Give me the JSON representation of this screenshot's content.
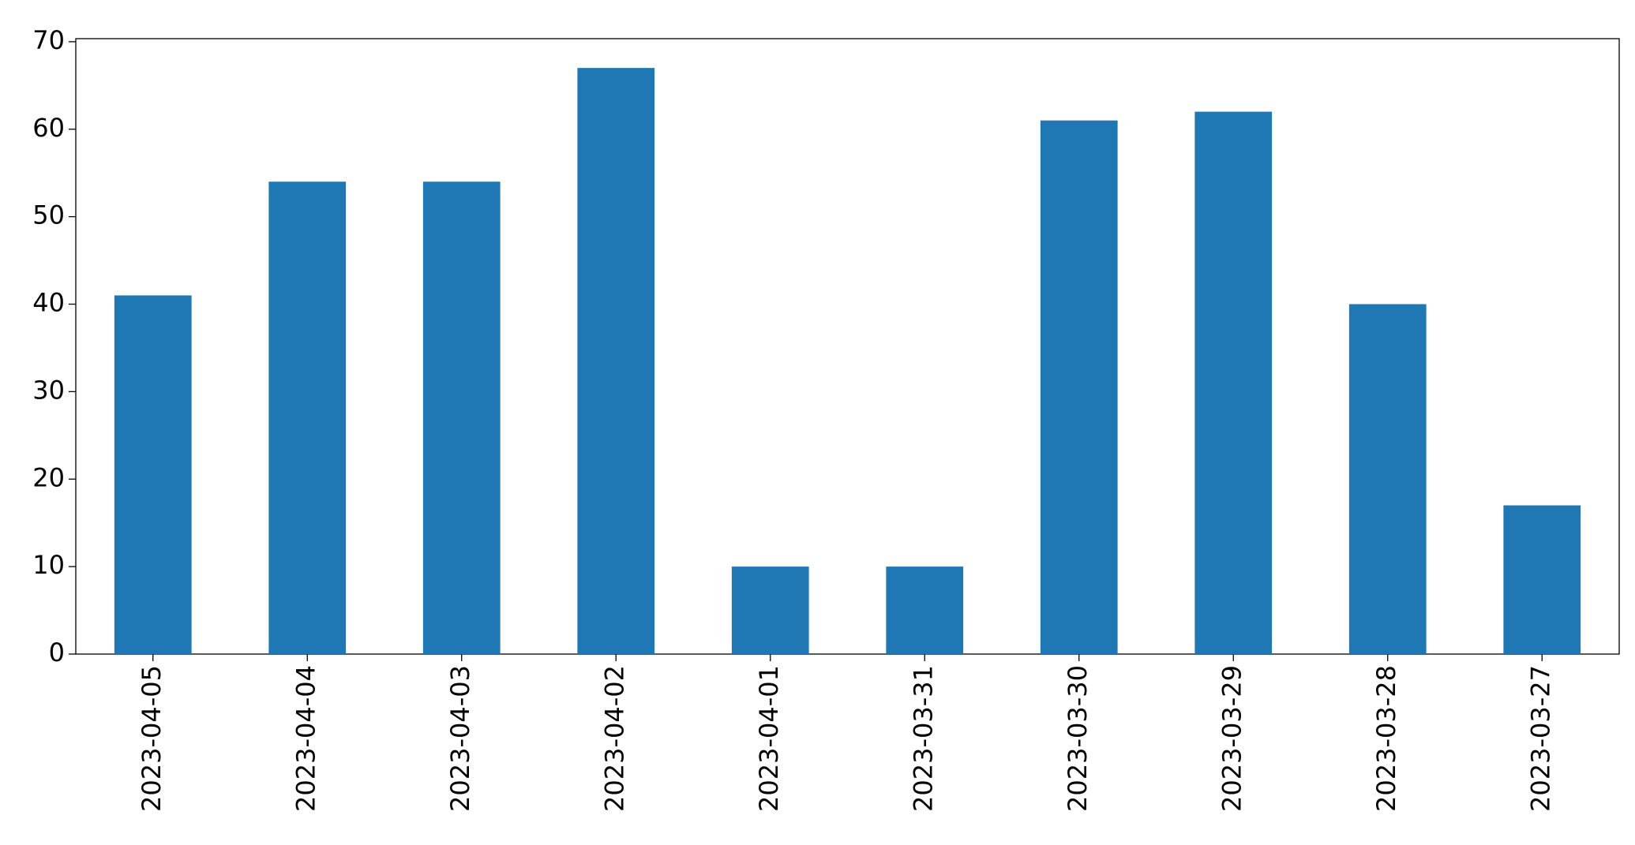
{
  "chart_data": {
    "type": "bar",
    "categories": [
      "2023-04-05",
      "2023-04-04",
      "2023-04-03",
      "2023-04-02",
      "2023-04-01",
      "2023-03-31",
      "2023-03-30",
      "2023-03-29",
      "2023-03-28",
      "2023-03-27"
    ],
    "values": [
      41,
      54,
      54,
      67,
      10,
      10,
      61,
      62,
      40,
      17
    ],
    "color": "#1f77b4",
    "ylim": [
      0,
      70.35
    ],
    "yticks": [
      0,
      10,
      20,
      30,
      40,
      50,
      60,
      70
    ],
    "grid": false
  }
}
